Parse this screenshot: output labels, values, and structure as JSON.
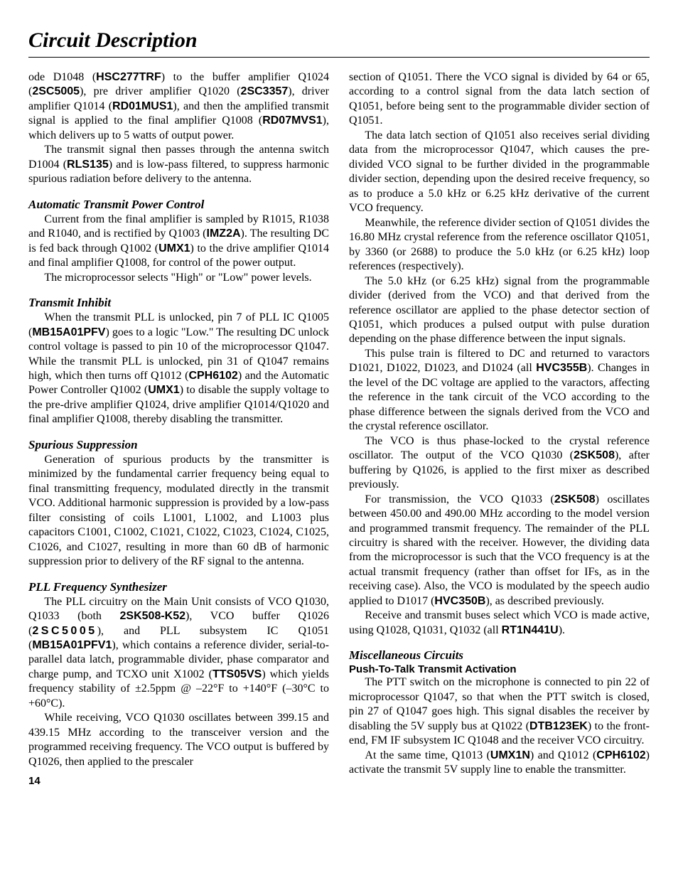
{
  "title": "Circuit Description",
  "page_number": "14",
  "left": {
    "p1": {
      "a": "ode D1048 (",
      "b1": "HSC277TRF",
      "c": ") to the buffer amplifier Q1024 (",
      "b2": "2SC5005",
      "d": "), pre driver amplifier Q1020 (",
      "b3": "2SC3357",
      "e": "), driver amplifier Q1014 (",
      "b4": "RD01MUS1",
      "f": "), and then the amplified transmit signal is applied to the final amplifier Q1008 (",
      "b5": "RD07MVS1",
      "g": "), which delivers up to 5 watts of output power."
    },
    "p2": {
      "a": "The transmit signal then passes through the antenna switch D1004 (",
      "b1": "RLS135",
      "b": ") and is low-pass filtered, to suppress harmonic spurious radiation before delivery to the antenna."
    },
    "h1": "Automatic Transmit Power Control",
    "p3": {
      "a": "Current from the final amplifier is sampled by R1015, R1038 and R1040, and is rectified by Q1003 (",
      "b1": "IMZ2A",
      "b": "). The resulting DC is fed back through Q1002 (",
      "b2": "UMX1",
      "c": ") to the drive amplifier Q1014 and final amplifier Q1008, for control of the power output."
    },
    "p4": "The microprocessor selects \"High\" or \"Low\" power levels.",
    "h2": "Transmit Inhibit",
    "p5": {
      "a": "When the transmit PLL is unlocked, pin 7 of PLL IC Q1005 (",
      "b1": "MB15A01PFV",
      "b": ") goes to a logic \"Low.\" The resulting DC unlock control voltage is passed to pin 10 of the microprocessor Q1047. While the transmit PLL is unlocked, pin 31 of Q1047 remains high, which then turns off Q1012 (",
      "b2": "CPH6102",
      "c": ") and the Automatic Power Controller Q1002 (",
      "b3": "UMX1",
      "d": ") to disable the supply voltage to the pre-drive amplifier Q1024, drive amplifier Q1014/Q1020 and final amplifier Q1008, thereby disabling the transmitter."
    },
    "h3": "Spurious Suppression",
    "p6": "Generation of spurious products by the transmitter is minimized by the fundamental carrier frequency being equal to final transmitting frequency, modulated directly in the transmit VCO. Additional harmonic suppression is provided by a low-pass filter consisting of coils L1001, L1002, and L1003 plus capacitors C1001, C1002, C1021, C1022, C1023, C1024, C1025, C1026, and C1027, resulting in more than 60 dB of harmonic suppression prior to delivery of the RF signal to the antenna.",
    "h4": "PLL Frequency Synthesizer",
    "p7": {
      "a": "The PLL circuitry on the Main Unit consists of VCO Q1030, Q1033 (both ",
      "b1": "2SK508-K52",
      "b": "), VCO buffer Q1026 (",
      "b2": "2SC5005",
      "c": "), and PLL subsystem IC Q1051 (",
      "b3": "MB15A01PFV1",
      "d": "), which contains a reference divider, serial-to-parallel data latch, programmable divider, phase comparator and charge pump, and TCXO unit X1002 (",
      "b4": "TTS05VS",
      "e": ") which yields frequency stability of ±2.5ppm @ –22°F to +140°F (–30°C to +60°C)."
    },
    "p8": "While receiving, VCO Q1030 oscillates between 399.15 and 439.15 MHz according to the transceiver version and the programmed receiving frequency. The VCO output is buffered by Q1026, then applied to the prescaler"
  },
  "right": {
    "p1": "section of Q1051. There the VCO signal is divided by 64 or 65, according to a control signal from the data latch section of Q1051, before being sent to the programmable divider section of Q1051.",
    "p2": "The data latch section of Q1051 also receives serial dividing data from the microprocessor Q1047, which causes the pre-divided VCO signal to be further divided in the programmable divider section, depending upon the desired receive frequency, so as to produce a 5.0 kHz or 6.25 kHz derivative of the current VCO frequency.",
    "p3": "Meanwhile, the reference divider section of Q1051 divides the 16.80 MHz crystal reference from the reference oscillator Q1051, by 3360 (or 2688) to produce the 5.0 kHz (or 6.25 kHz) loop references (respectively).",
    "p4": "The 5.0 kHz (or 6.25 kHz) signal from the programmable divider (derived from the VCO) and that derived from the reference oscillator are applied to the phase detector section of Q1051, which produces a pulsed output with pulse duration depending on the phase difference between the input signals.",
    "p5": {
      "a": "This pulse train is filtered to DC and returned to varactors D1021, D1022, D1023, and D1024 (all ",
      "b1": "HVC355B",
      "b": "). Changes in the level of the DC voltage are applied to the varactors, affecting the reference in the tank circuit of the VCO according to the phase difference between the signals derived from the VCO and the crystal reference oscillator."
    },
    "p6": {
      "a": "The VCO is thus phase-locked to the crystal reference oscillator. The output of the VCO Q1030 (",
      "b1": "2SK508",
      "b": "), after buffering by Q1026, is applied to the first mixer as described previously."
    },
    "p7": {
      "a": "For transmission, the VCO Q1033 (",
      "b1": "2SK508",
      "b": ") oscillates between 450.00 and 490.00 MHz according to the model version and programmed transmit frequency. The remainder of the PLL circuitry is shared with the receiver. However, the dividing data from the microprocessor is such that the VCO frequency is at the actual transmit frequency (rather than offset for IFs, as in the receiving case). Also, the VCO is modulated by the speech audio applied to D1017 (",
      "b2": "HVC350B",
      "c": "), as described previously."
    },
    "p8": {
      "a": "Receive and transmit buses select which VCO is made active, using Q1028, Q1031, Q1032 (all ",
      "b1": "RT1N441U",
      "b": ")."
    },
    "h1": "Miscellaneous Circuits",
    "sh1": "Push-To-Talk Transmit Activation",
    "p9": {
      "a": "The PTT switch on the microphone is connected to pin 22 of microprocessor Q1047, so that when the PTT switch is closed, pin 27 of Q1047 goes high. This signal disables the receiver by disabling the 5V supply bus at Q1022 (",
      "b1": "DTB123EK",
      "b": ") to the front-end, FM IF subsystem IC Q1048 and the receiver VCO circuitry."
    },
    "p10": {
      "a": "At the same time, Q1013 (",
      "b1": "UMX1N",
      "b": ") and Q1012 (",
      "b2": "CPH6102",
      "c": ") activate the transmit 5V supply line to enable the transmitter."
    }
  }
}
